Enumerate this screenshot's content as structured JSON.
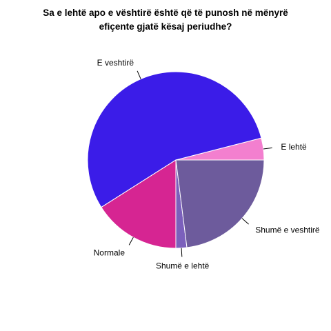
{
  "chart_data": {
    "type": "pie",
    "title_lines": [
      "Sa e lehtë apo e vështirë është që të punosh në mënyrë",
      "efiçente gjatë kësaj periudhe?"
    ],
    "start_angle_deg": 0,
    "direction": "counterclockwise",
    "slices": [
      {
        "label": "E lehtë",
        "value": 4,
        "color": "#F37FCF"
      },
      {
        "label": "E veshtirë",
        "value": 55,
        "color": "#3B1CE8"
      },
      {
        "label": "Normale",
        "value": 16,
        "color": "#D62592"
      },
      {
        "label": "Shumë e lehtë",
        "value": 2,
        "color": "#7B60BC"
      },
      {
        "label": "Shumë e veshtirë",
        "value": 23,
        "color": "#6D5B9C"
      }
    ]
  }
}
